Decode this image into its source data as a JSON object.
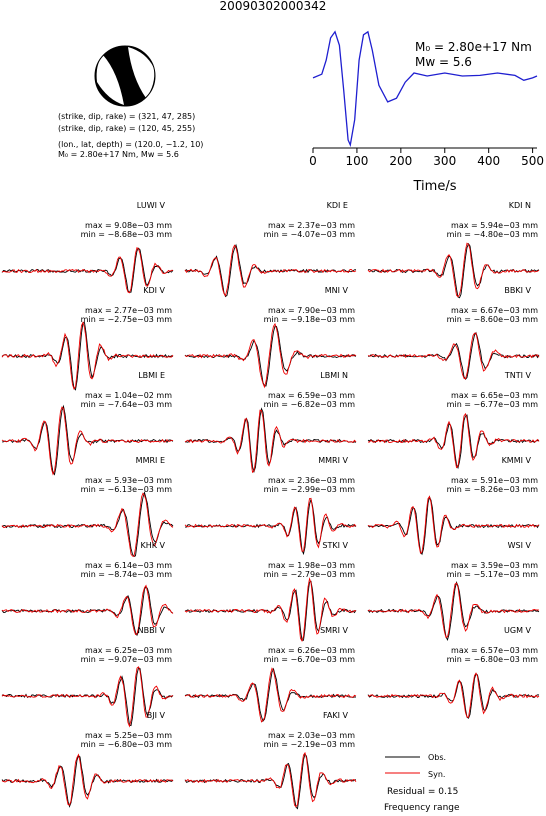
{
  "title": "20090302000342",
  "source_info": [
    "(strike, dip, rake) = (321, 47, 285)",
    "(strike, dip, rake) = (120, 45, 255)",
    "(lon., lat, depth) = (120.0, −1.2, 10)",
    "M₀ = 2.80e+17 Nm, Mw = 5.6"
  ],
  "chart_data": {
    "type": "line",
    "xlabel": "Time/s",
    "annotations": [
      "M₀ = 2.80e+17 Nm",
      "Mw = 5.6"
    ],
    "x": [
      0,
      20,
      30,
      40,
      50,
      60,
      70,
      80,
      85,
      95,
      105,
      115,
      125,
      135,
      150,
      170,
      190,
      210,
      230,
      260,
      300,
      340,
      380,
      420,
      460,
      480,
      500,
      510
    ],
    "values": [
      0.14,
      0.2,
      0.43,
      0.79,
      0.89,
      0.67,
      -0.06,
      -0.87,
      -0.95,
      -0.54,
      0.43,
      0.84,
      0.89,
      0.59,
      0.02,
      -0.25,
      -0.19,
      0.07,
      0.22,
      0.17,
      0.22,
      0.17,
      0.18,
      0.22,
      0.18,
      0.1,
      0.14,
      0.17
    ],
    "color": "#1f1fd0",
    "xlim": [
      0,
      510
    ],
    "ylim": [
      -1,
      1
    ],
    "xticks": [
      0,
      100,
      200,
      300,
      400,
      500
    ]
  },
  "panels": [
    {
      "label": "LUWI V",
      "max": "max = 9.08e−03 mm",
      "min": "min = −8.68e−03 mm"
    },
    {
      "label": "KDI E",
      "max": "max = 2.37e−03 mm",
      "min": "min = −4.07e−03 mm"
    },
    {
      "label": "KDI N",
      "max": "max = 5.94e−03 mm",
      "min": "min = −4.80e−03 mm"
    },
    {
      "label": "KDI V",
      "max": "max = 2.77e−03 mm",
      "min": "min = −2.75e−03 mm"
    },
    {
      "label": "MNI V",
      "max": "max = 7.90e−03 mm",
      "min": "min = −9.18e−03 mm"
    },
    {
      "label": "BBKI V",
      "max": "max = 6.67e−03 mm",
      "min": "min = −8.60e−03 mm"
    },
    {
      "label": "LBMI E",
      "max": "max = 1.04e−02 mm",
      "min": "min = −7.64e−03 mm"
    },
    {
      "label": "LBMI N",
      "max": "max = 6.59e−03 mm",
      "min": "min = −6.82e−03 mm"
    },
    {
      "label": "TNTI V",
      "max": "max = 6.65e−03 mm",
      "min": "min = −6.77e−03 mm"
    },
    {
      "label": "MMRI E",
      "max": "max = 5.93e−03 mm",
      "min": "min = −6.13e−03 mm"
    },
    {
      "label": "MMRI V",
      "max": "max = 2.36e−03 mm",
      "min": "min = −2.99e−03 mm"
    },
    {
      "label": "KMMI V",
      "max": "max = 5.91e−03 mm",
      "min": "min = −8.26e−03 mm"
    },
    {
      "label": "KHK V",
      "max": "max = 6.14e−03 mm",
      "min": "min = −8.74e−03 mm"
    },
    {
      "label": "STKI V",
      "max": "max = 1.98e−03 mm",
      "min": "min = −2.79e−03 mm"
    },
    {
      "label": "WSI V",
      "max": "max = 3.59e−03 mm",
      "min": "min = −5.17e−03 mm"
    },
    {
      "label": "NBBI V",
      "max": "max = 6.25e−03 mm",
      "min": "min = −9.07e−03 mm"
    },
    {
      "label": "SMRI V",
      "max": "max = 6.26e−03 mm",
      "min": "min = −6.70e−03 mm"
    },
    {
      "label": "UGM V",
      "max": "max = 6.57e−03 mm",
      "min": "min = −6.80e−03 mm"
    },
    {
      "label": "BJI V",
      "max": "max = 5.25e−03 mm",
      "min": "min = −6.80e−03 mm"
    },
    {
      "label": "FAKI V",
      "max": "max = 2.03e−03 mm",
      "min": "min = −2.19e−03 mm"
    }
  ],
  "legend": {
    "entries": [
      "Obs.",
      "Syn."
    ],
    "residual": "Residual = 0.15",
    "note": "Frequency range"
  }
}
